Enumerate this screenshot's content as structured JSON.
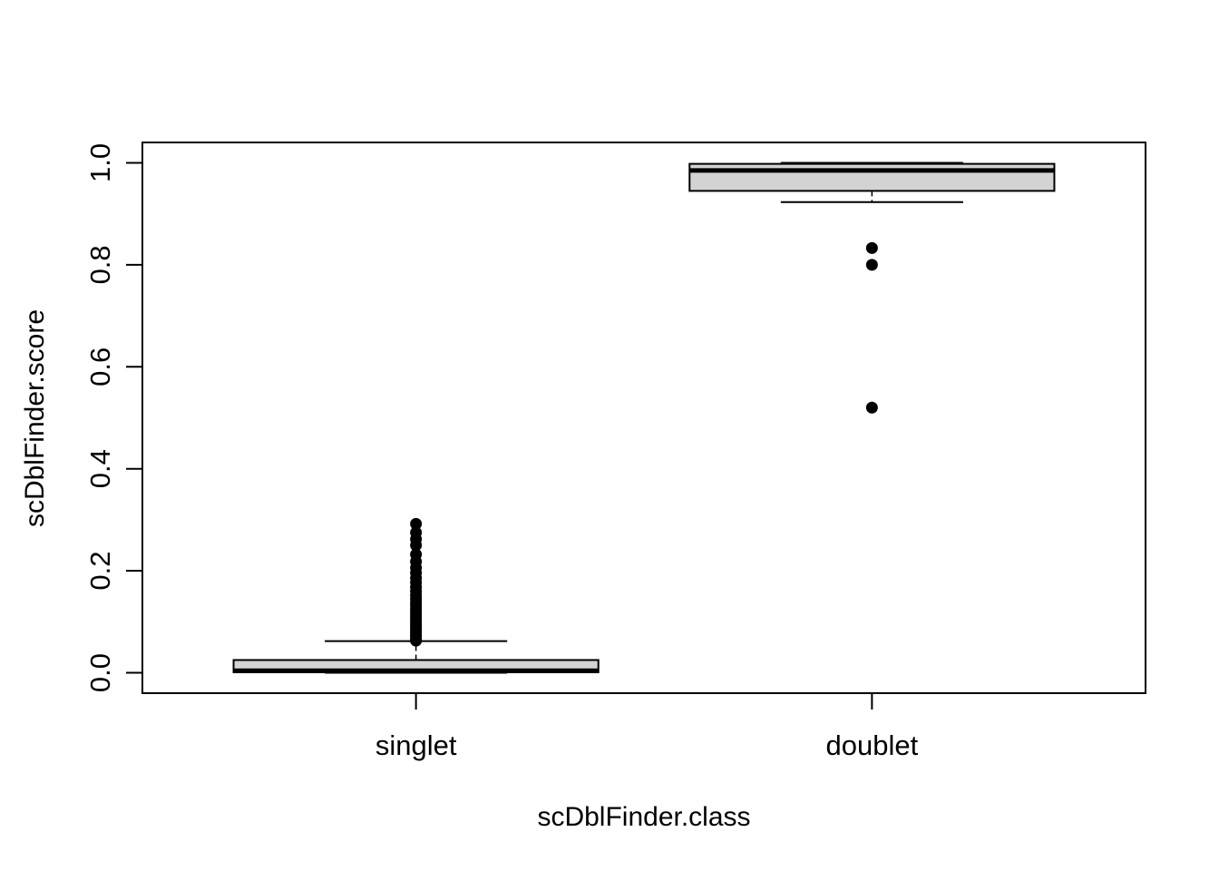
{
  "chart_data": {
    "type": "boxplot",
    "xlabel": "scDblFinder.class",
    "ylabel": "scDblFinder.score",
    "ylim": [
      -0.04,
      1.04
    ],
    "y_ticks": [
      0.0,
      0.2,
      0.4,
      0.6,
      0.8,
      1.0
    ],
    "y_tick_labels": [
      "0.0",
      "0.2",
      "0.4",
      "0.6",
      "0.8",
      "1.0"
    ],
    "categories": [
      "singlet",
      "doublet"
    ],
    "box_color": "#d3d3d3",
    "grid": false,
    "boxes": [
      {
        "category": "singlet",
        "whisker_low": 0.0,
        "q1": 0.001,
        "median": 0.004,
        "q3": 0.025,
        "whisker_high": 0.062,
        "outliers": [
          0.063,
          0.066,
          0.07,
          0.074,
          0.078,
          0.082,
          0.086,
          0.09,
          0.095,
          0.1,
          0.105,
          0.11,
          0.115,
          0.12,
          0.126,
          0.132,
          0.138,
          0.145,
          0.152,
          0.16,
          0.168,
          0.177,
          0.186,
          0.196,
          0.206,
          0.218,
          0.232,
          0.25,
          0.262,
          0.275,
          0.292
        ]
      },
      {
        "category": "doublet",
        "whisker_low": 0.923,
        "q1": 0.945,
        "median": 0.985,
        "q3": 0.998,
        "whisker_high": 1.0,
        "outliers": [
          0.52,
          0.8,
          0.833
        ]
      }
    ]
  }
}
